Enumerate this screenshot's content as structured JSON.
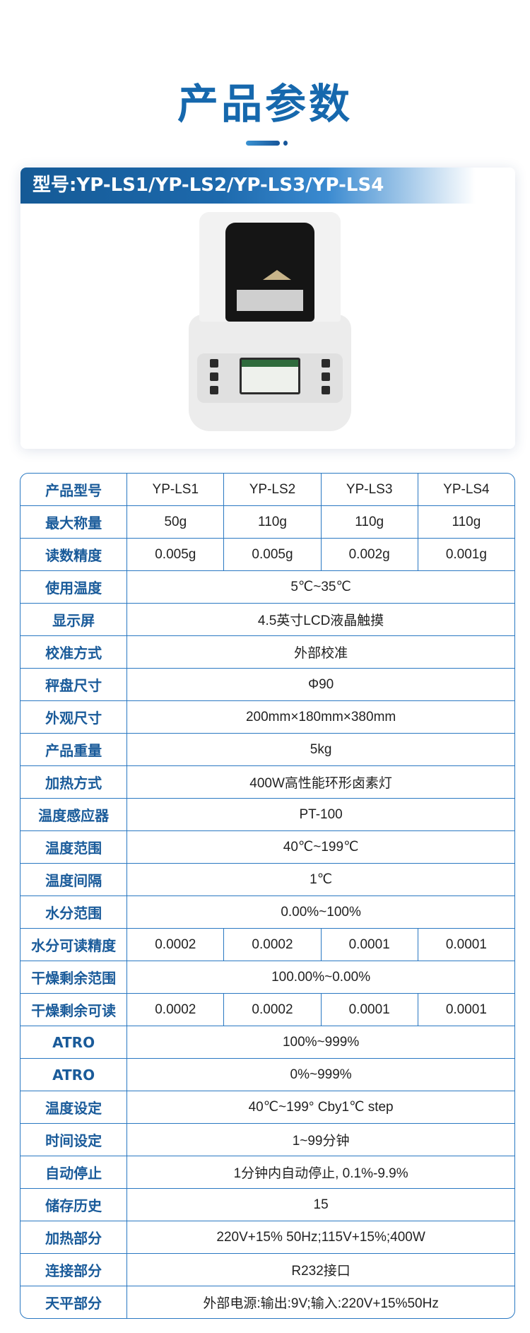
{
  "header": {
    "title": "产品参数"
  },
  "card": {
    "model_banner": "型号:YP-LS1/YP-LS2/YP-LS3/YP-LS4"
  },
  "spec_table": {
    "rows": [
      {
        "label": "产品型号",
        "values": [
          "YP-LS1",
          "YP-LS2",
          "YP-LS3",
          "YP-LS4"
        ]
      },
      {
        "label": "最大称量",
        "values": [
          "50g",
          "110g",
          "110g",
          "110g"
        ]
      },
      {
        "label": "读数精度",
        "values": [
          "0.005g",
          "0.005g",
          "0.002g",
          "0.001g"
        ]
      },
      {
        "label": "使用温度",
        "value": "5℃~35℃"
      },
      {
        "label": "显示屏",
        "value": "4.5英寸LCD液晶触摸"
      },
      {
        "label": "校准方式",
        "value": "外部校准"
      },
      {
        "label": "秤盘尺寸",
        "value": "Φ90"
      },
      {
        "label": "外观尺寸",
        "value": "200mm×180mm×380mm"
      },
      {
        "label": "产品重量",
        "value": "5kg"
      },
      {
        "label": "加热方式",
        "value": "400W高性能环形卤素灯"
      },
      {
        "label": "温度感应器",
        "value": "PT-100"
      },
      {
        "label": "温度范围",
        "value": "40℃~199℃"
      },
      {
        "label": "温度间隔",
        "value": "1℃"
      },
      {
        "label": "水分范围",
        "value": "0.00%~100%"
      },
      {
        "label": "水分可读精度",
        "values": [
          "0.0002",
          "0.0002",
          "0.0001",
          "0.0001"
        ]
      },
      {
        "label": "干燥剩余范围",
        "value": "100.00%~0.00%"
      },
      {
        "label": "干燥剩余可读",
        "values": [
          "0.0002",
          "0.0002",
          "0.0001",
          "0.0001"
        ]
      },
      {
        "label": "ATRO",
        "value": "100%~999%"
      },
      {
        "label": "ATRO",
        "value": "0%~999%"
      },
      {
        "label": "温度设定",
        "value": "40℃~199° Cby1℃ step"
      },
      {
        "label": "时间设定",
        "value": "1~99分钟"
      },
      {
        "label": "自动停止",
        "value": "1分钟内自动停止, 0.1%-9.9%"
      },
      {
        "label": "储存历史",
        "value": "15"
      },
      {
        "label": "加热部分",
        "value": "220V+15% 50Hz;115V+15%;400W"
      },
      {
        "label": "连接部分",
        "value": "R232接口"
      },
      {
        "label": "天平部分",
        "value": "外部电源:输出:9V;输入:220V+15%50Hz"
      }
    ]
  },
  "colors": {
    "accent": "#1668ad",
    "border": "#2a78c2",
    "label": "#1a5b9a"
  }
}
